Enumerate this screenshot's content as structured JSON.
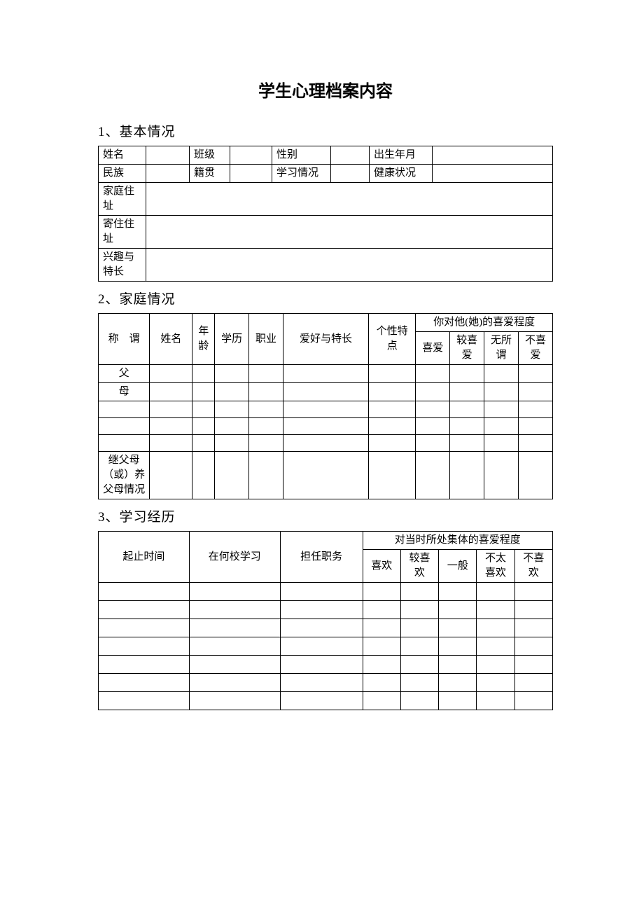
{
  "title": "学生心理档案内容",
  "s1": {
    "heading": "1、基本情况",
    "labels": {
      "name": "姓名",
      "class": "班级",
      "gender": "性别",
      "birth": "出生年月",
      "ethnic": "民族",
      "origin": "籍贯",
      "study": "学习情况",
      "health": "健康状况",
      "home": "家庭住址",
      "stay": "寄住住址",
      "hobby": "兴趣与特长"
    }
  },
  "s2": {
    "heading": "2、家庭情况",
    "head": {
      "rel": "称　谓",
      "name": "姓名",
      "age": "年龄",
      "edu": "学历",
      "job": "职业",
      "hobby": "爱好与特长",
      "trait": "个性特点",
      "fav_group": "你对他(她)的喜爱程度",
      "fav1": "喜爱",
      "fav2": "较喜爱",
      "fav3": "无所谓",
      "fav4": "不喜爱"
    },
    "rows": {
      "r0": "父",
      "r1": "母",
      "r2": "",
      "r3": "",
      "r4": "",
      "r5": "继父母（或）养父母情况"
    }
  },
  "s3": {
    "heading": "3、学习经历",
    "head": {
      "time": "起止时间",
      "school": "在何校学习",
      "duty": "担任职务",
      "fav_group": "对当时所处集体的喜爱程度",
      "f1": "喜欢",
      "f2": "较喜欢",
      "f3": "一般",
      "f4": "不太喜欢",
      "f5": "不喜欢"
    }
  },
  "layout": {
    "t1_cols": [
      "68px",
      "62px",
      "58px",
      "60px",
      "84px",
      "55px",
      "90px",
      ""
    ],
    "t2_cols": [
      "60px",
      "50px",
      "25px",
      "40px",
      "40px",
      "100px",
      "55px",
      "40px",
      "40px",
      "40px",
      "40px"
    ],
    "t3_cols": [
      "110px",
      "110px",
      "100px",
      "46px",
      "46px",
      "46px",
      "46px",
      "46px"
    ]
  }
}
